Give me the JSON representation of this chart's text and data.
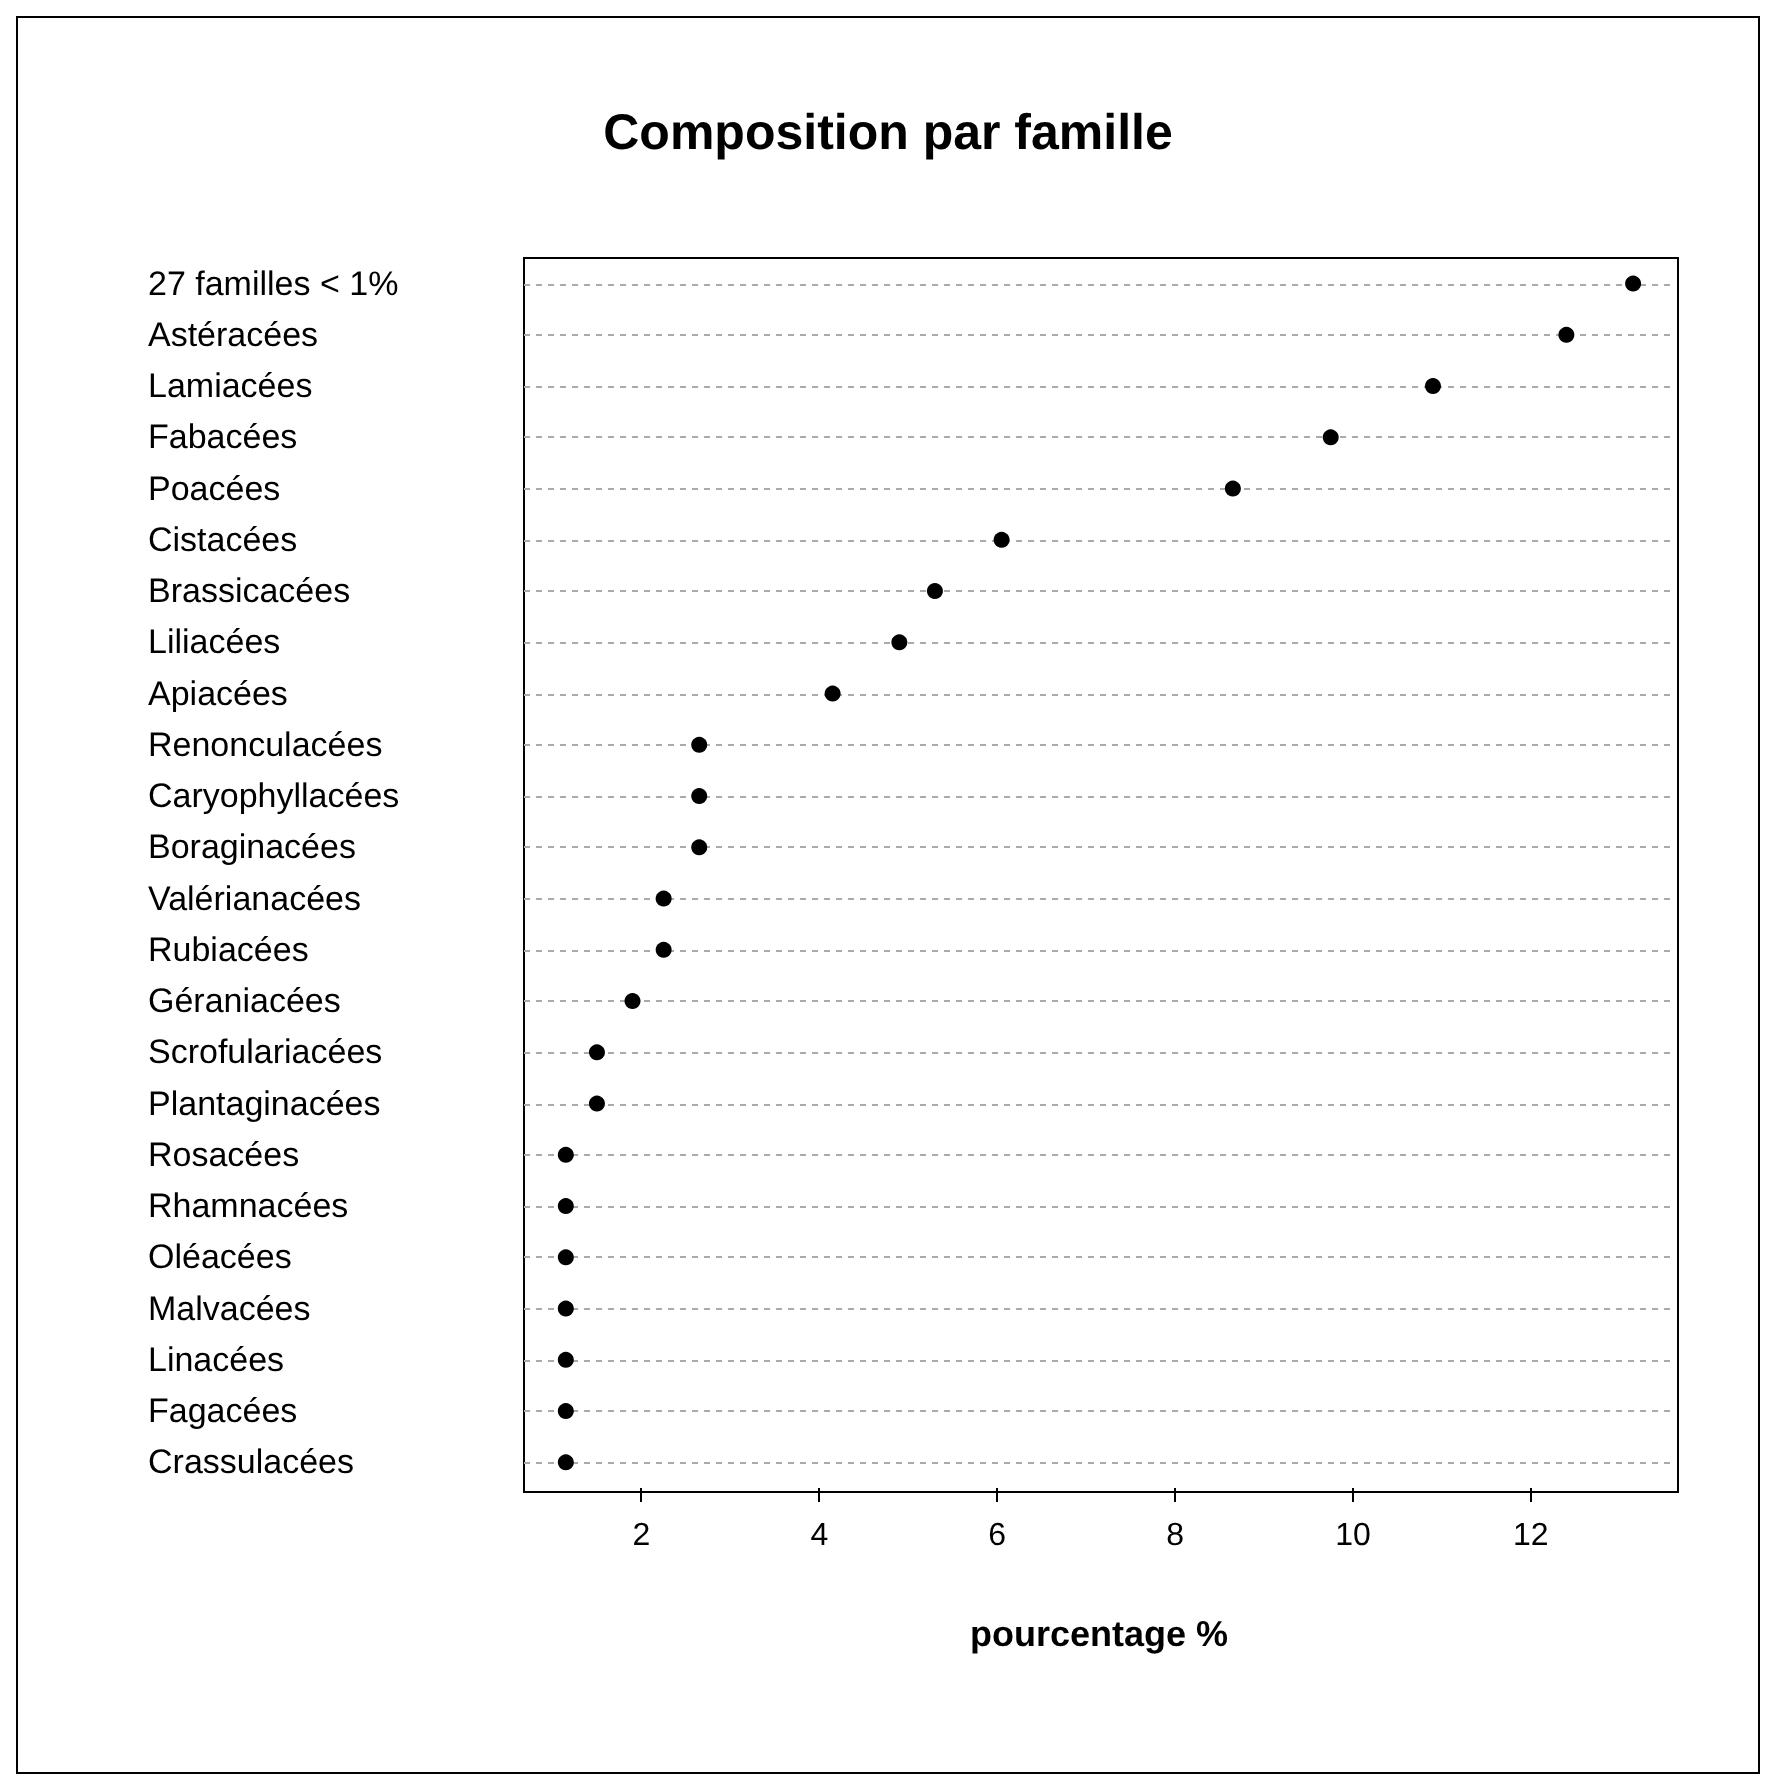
{
  "chart_data": {
    "type": "scatter",
    "title": "Composition par famille",
    "xlabel": "pourcentage %",
    "categories": [
      "27 familles < 1%",
      "Astéracées",
      "Lamiacées",
      "Fabacées",
      "Poacées",
      "Cistacées",
      "Brassicacées",
      "Liliacées",
      "Apiacées",
      "Renonculacées",
      "Caryophyllacées",
      "Boraginacées",
      "Valérianacées",
      "Rubiacées",
      "Géraniacées",
      "Scrofulariacées",
      "Plantaginacées",
      "Rosacées",
      "Rhamnacées",
      "Oléacées",
      "Malvacées",
      "Linacées",
      "Fagacées",
      "Crassulacées"
    ],
    "orientation": "horizontal",
    "series": [
      {
        "color": "#000000",
        "values": [
          13.15,
          12.4,
          10.9,
          9.75,
          8.65,
          6.05,
          5.3,
          4.9,
          4.15,
          2.65,
          2.65,
          2.65,
          2.25,
          2.25,
          1.9,
          1.5,
          1.5,
          1.15,
          1.15,
          1.15,
          1.15,
          1.15,
          1.15,
          1.15
        ]
      }
    ],
    "xlim": [
      0.68,
      13.61
    ],
    "xticks": [
      2,
      4,
      6,
      8,
      10,
      12
    ],
    "grid": "y",
    "marker": "circle"
  }
}
